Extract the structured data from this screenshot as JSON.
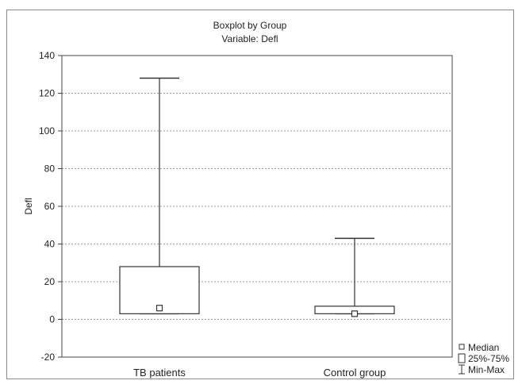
{
  "chart_data": {
    "type": "boxplot",
    "title": "Boxplot by Group",
    "subtitle": "Variable: Defl",
    "xlabel": "",
    "ylabel": "Defl",
    "ylim": [
      -20,
      140
    ],
    "yticks": [
      -20,
      0,
      20,
      40,
      60,
      80,
      100,
      120,
      140
    ],
    "grid": true,
    "legend_position": "bottom-right",
    "categories": [
      "TB patients",
      "Control group"
    ],
    "series": [
      {
        "category": "TB patients",
        "min": 3,
        "q1": 3,
        "median": 6,
        "q3": 28,
        "max": 128
      },
      {
        "category": "Control group",
        "min": 3,
        "q1": 3,
        "median": 3,
        "q3": 7,
        "max": 43
      }
    ],
    "legend": [
      {
        "symbol": "median",
        "label": "Median"
      },
      {
        "symbol": "box",
        "label": "25%-75%"
      },
      {
        "symbol": "whisker",
        "label": "Min-Max"
      }
    ]
  }
}
